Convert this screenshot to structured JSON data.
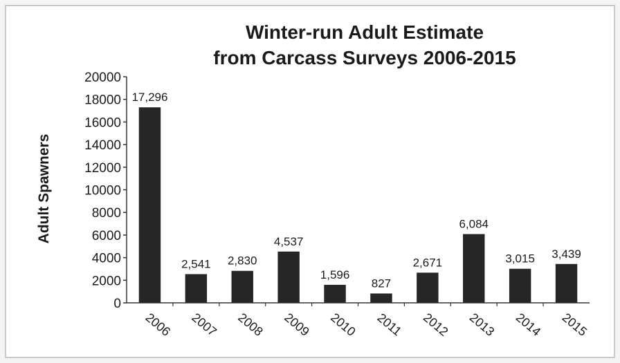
{
  "chart_data": {
    "type": "bar",
    "title": [
      "Winter-run Adult Estimate",
      "from Carcass Surveys 2006-2015"
    ],
    "xlabel": "",
    "ylabel": "Adult Spawners",
    "ylim": [
      0,
      20000
    ],
    "yticks": [
      "0",
      "2000",
      "4000",
      "6000",
      "8000",
      "10000",
      "12000",
      "14000",
      "16000",
      "18000",
      "20000"
    ],
    "categories": [
      "2006",
      "2007",
      "2008",
      "2009",
      "2010",
      "2011",
      "2012",
      "2013",
      "2014",
      "2015"
    ],
    "values": [
      17296,
      2541,
      2830,
      4537,
      1596,
      827,
      2671,
      6084,
      3015,
      3439
    ],
    "data_labels": [
      "17,296",
      "2,541",
      "2,830",
      "4,537",
      "1,596",
      "827",
      "2,671",
      "6,084",
      "3,015",
      "3,439"
    ],
    "grid": false,
    "legend": "none",
    "bar_color": "#262626"
  }
}
